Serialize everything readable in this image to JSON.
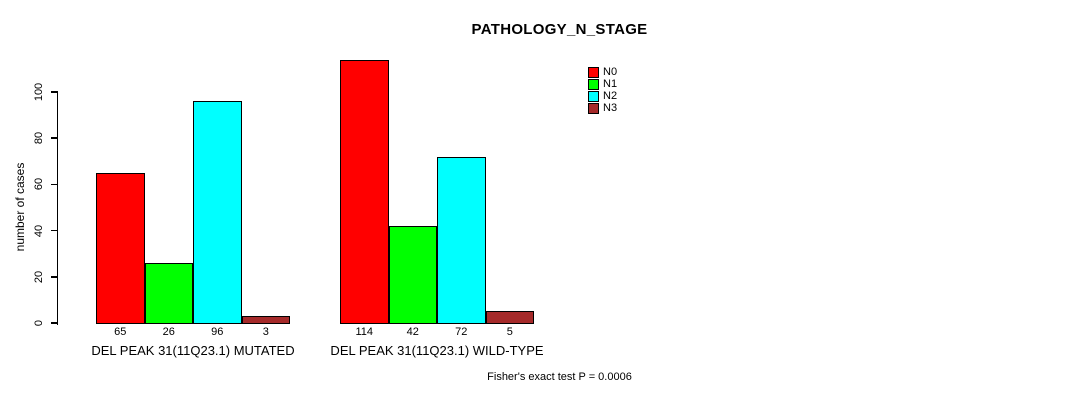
{
  "chart_data": {
    "type": "bar",
    "title": "PATHOLOGY_N_STAGE",
    "ylabel": "number of cases",
    "xlabel": "",
    "ylim": [
      0,
      100
    ],
    "yticks": [
      0,
      20,
      40,
      60,
      80,
      100
    ],
    "grid": false,
    "legend_position": "top-right",
    "categories": [
      "DEL PEAK 31(11Q23.1) MUTATED",
      "DEL PEAK 31(11Q23.1) WILD-TYPE"
    ],
    "series": [
      {
        "name": "N0",
        "color": "#ff0000",
        "values": [
          65,
          114
        ]
      },
      {
        "name": "N1",
        "color": "#00ff00",
        "values": [
          26,
          42
        ]
      },
      {
        "name": "N2",
        "color": "#00ffff",
        "values": [
          96,
          72
        ]
      },
      {
        "name": "N3",
        "color": "#a52a2a",
        "values": [
          3,
          5
        ]
      }
    ],
    "bar_value_labels": [
      [
        65,
        26,
        96,
        3
      ],
      [
        114,
        42,
        72,
        5
      ]
    ],
    "annotation": "Fisher's exact test P = 0.0006"
  },
  "colors": {
    "background": "#ffffff",
    "axis": "#000000",
    "text": "#000000"
  }
}
